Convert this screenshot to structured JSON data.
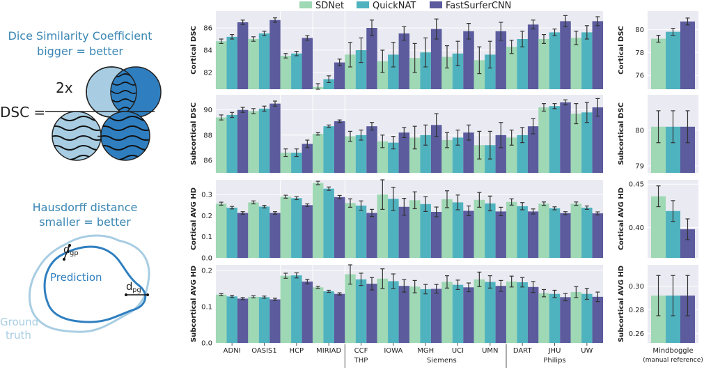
{
  "illustration": {
    "dice_title": "Dice Similarity Coefficient",
    "dice_subtitle": "bigger = better",
    "dsc_symbol": "DSC =",
    "two_x": "2x",
    "plus": "+",
    "hausdorff_title": "Hausdorff distance",
    "hausdorff_subtitle": "smaller = better",
    "prediction_label": "Prediction",
    "ground_label": "Ground",
    "truth_label": "truth",
    "dgp_main": "d",
    "dgp_sub": "gp",
    "dpg_main": "d",
    "dpg_sub": "pg"
  },
  "colors": {
    "sdnet": "#9fd8b4",
    "quicknat": "#4fb3bf",
    "fastsurfer": "#5b5b9e",
    "panel_bg": "#eaeaf2",
    "grid": "#ffffff",
    "illus_blue": "#3a86b4",
    "illus_light": "#a8cde3",
    "illus_dark": "#2f7fc0"
  },
  "chart_data": {
    "type": "bar",
    "legend": [
      "SDNet",
      "QuickNAT",
      "FastSurferCNN"
    ],
    "legend_placement": "top",
    "categories": [
      "ADNI",
      "OASIS1",
      "HCP",
      "MIRIAD",
      "CCF",
      "IOWA",
      "MGH",
      "UCI",
      "UMN",
      "DART",
      "JHU",
      "UW"
    ],
    "vendor_groups": [
      {
        "label": "THP",
        "categories": [
          "CCF"
        ]
      },
      {
        "label": "Siemens",
        "categories": [
          "IOWA",
          "MGH",
          "UCI",
          "UMN"
        ]
      },
      {
        "label": "Philips",
        "categories": [
          "DART",
          "JHU",
          "UW"
        ]
      }
    ],
    "reference_category": "Mindboggle",
    "reference_note": "(manual reference)",
    "rows": [
      {
        "ylabel": "Cortical DSC",
        "ylim": [
          80.5,
          87.5
        ],
        "yticks": [
          82,
          84,
          86
        ],
        "series": [
          {
            "name": "SDNet",
            "values": [
              84.8,
              85.0,
              83.5,
              80.7,
              83.6,
              83.0,
              83.3,
              83.4,
              83.1,
              84.3,
              85.0,
              85.1
            ],
            "errors": [
              0.2,
              0.2,
              0.2,
              0.3,
              1.1,
              1.0,
              1.3,
              1.0,
              1.2,
              0.6,
              0.4,
              0.6
            ]
          },
          {
            "name": "QuickNAT",
            "values": [
              85.2,
              85.5,
              83.7,
              81.4,
              84.0,
              83.6,
              83.8,
              83.7,
              83.6,
              85.0,
              85.6,
              85.6
            ],
            "errors": [
              0.2,
              0.2,
              0.2,
              0.3,
              1.1,
              1.1,
              1.3,
              1.1,
              1.2,
              0.7,
              0.3,
              0.6
            ]
          },
          {
            "name": "FastSurferCNN",
            "values": [
              86.5,
              86.7,
              85.1,
              82.9,
              86.0,
              85.5,
              85.9,
              85.7,
              85.7,
              86.3,
              86.6,
              86.6
            ],
            "errors": [
              0.2,
              0.2,
              0.2,
              0.3,
              0.7,
              0.6,
              0.9,
              0.7,
              0.8,
              0.4,
              0.5,
              0.4
            ]
          }
        ],
        "reference": {
          "ylim": [
            74.8,
            81.6
          ],
          "yticks": [
            76,
            78,
            80
          ],
          "values": [
            79.2,
            79.8,
            80.7
          ],
          "errors": [
            0.3,
            0.3,
            0.3
          ]
        }
      },
      {
        "ylabel": "Subcortical DSC",
        "ylim": [
          85.0,
          91.2
        ],
        "yticks": [
          86,
          88,
          90
        ],
        "series": [
          {
            "name": "SDNet",
            "values": [
              89.4,
              89.9,
              86.6,
              88.1,
              87.9,
              87.5,
              87.8,
              87.6,
              87.2,
              87.8,
              90.2,
              89.7
            ],
            "errors": [
              0.2,
              0.2,
              0.3,
              0.1,
              0.4,
              0.5,
              0.9,
              0.6,
              1.1,
              0.6,
              0.3,
              0.8
            ]
          },
          {
            "name": "QuickNAT",
            "values": [
              89.6,
              90.1,
              86.6,
              88.7,
              88.0,
              87.4,
              88.0,
              87.8,
              87.2,
              88.0,
              90.3,
              89.8
            ],
            "errors": [
              0.2,
              0.2,
              0.3,
              0.1,
              0.4,
              0.5,
              0.8,
              0.6,
              1.1,
              0.6,
              0.2,
              0.8
            ]
          },
          {
            "name": "FastSurferCNN",
            "values": [
              90.0,
              90.5,
              87.3,
              89.1,
              88.7,
              88.2,
              88.8,
              88.2,
              88.0,
              88.7,
              90.6,
              90.2
            ],
            "errors": [
              0.2,
              0.2,
              0.3,
              0.1,
              0.3,
              0.4,
              0.9,
              0.6,
              1.0,
              0.6,
              0.2,
              0.7
            ]
          }
        ],
        "reference": {
          "ylim": [
            78.8,
            81.0
          ],
          "yticks": [
            79,
            80
          ],
          "values": [
            80.1,
            80.1,
            80.1
          ],
          "errors": [
            0.45,
            0.45,
            0.45
          ]
        }
      },
      {
        "ylabel": "Cortical AVG HD",
        "ylim": [
          0,
          0.37
        ],
        "yticks": [
          0,
          0.1,
          0.2,
          0.3
        ],
        "series": [
          {
            "name": "SDNet",
            "values": [
              0.257,
              0.263,
              0.29,
              0.355,
              0.26,
              0.3,
              0.273,
              0.278,
              0.275,
              0.265,
              0.257,
              0.257
            ],
            "errors": [
              0.007,
              0.007,
              0.007,
              0.008,
              0.02,
              0.07,
              0.04,
              0.04,
              0.035,
              0.015,
              0.008,
              0.008
            ]
          },
          {
            "name": "QuickNAT",
            "values": [
              0.238,
              0.243,
              0.283,
              0.328,
              0.248,
              0.28,
              0.255,
              0.263,
              0.258,
              0.245,
              0.235,
              0.238
            ],
            "errors": [
              0.006,
              0.006,
              0.007,
              0.008,
              0.022,
              0.055,
              0.035,
              0.035,
              0.035,
              0.017,
              0.007,
              0.008
            ]
          },
          {
            "name": "FastSurferCNN",
            "values": [
              0.213,
              0.213,
              0.25,
              0.288,
              0.213,
              0.242,
              0.218,
              0.223,
              0.22,
              0.22,
              0.212,
              0.211
            ],
            "errors": [
              0.006,
              0.006,
              0.006,
              0.008,
              0.017,
              0.04,
              0.023,
              0.023,
              0.02,
              0.012,
              0.007,
              0.007
            ]
          }
        ],
        "reference": {
          "ylim": [
            0.365,
            0.455
          ],
          "yticks": [
            0.4,
            0.45
          ],
          "values": [
            0.436,
            0.419,
            0.398
          ],
          "errors": [
            0.012,
            0.012,
            0.012
          ]
        }
      },
      {
        "ylabel": "Subcortical AVG HD",
        "ylim": [
          0,
          0.215
        ],
        "yticks": [
          0,
          0.1,
          0.2
        ],
        "series": [
          {
            "name": "SDNet",
            "values": [
              0.133,
              0.127,
              0.185,
              0.153,
              0.189,
              0.177,
              0.155,
              0.168,
              0.175,
              0.169,
              0.137,
              0.14
            ],
            "errors": [
              0.003,
              0.003,
              0.007,
              0.003,
              0.027,
              0.027,
              0.017,
              0.017,
              0.02,
              0.015,
              0.01,
              0.015
            ]
          },
          {
            "name": "QuickNAT",
            "values": [
              0.128,
              0.126,
              0.186,
              0.142,
              0.175,
              0.17,
              0.148,
              0.16,
              0.168,
              0.167,
              0.135,
              0.135
            ],
            "errors": [
              0.003,
              0.003,
              0.007,
              0.003,
              0.017,
              0.02,
              0.013,
              0.013,
              0.017,
              0.013,
              0.01,
              0.015
            ]
          },
          {
            "name": "FastSurferCNN",
            "values": [
              0.122,
              0.12,
              0.169,
              0.135,
              0.163,
              0.157,
              0.149,
              0.153,
              0.157,
              0.154,
              0.126,
              0.127
            ],
            "errors": [
              0.003,
              0.003,
              0.006,
              0.003,
              0.017,
              0.017,
              0.012,
              0.012,
              0.015,
              0.015,
              0.01,
              0.013
            ]
          }
        ],
        "reference": {
          "ylim": [
            0.252,
            0.318
          ],
          "yticks": [
            0.26,
            0.28,
            0.3
          ],
          "values": [
            0.292,
            0.292,
            0.292
          ],
          "errors": [
            0.017,
            0.017,
            0.017
          ]
        }
      }
    ]
  }
}
